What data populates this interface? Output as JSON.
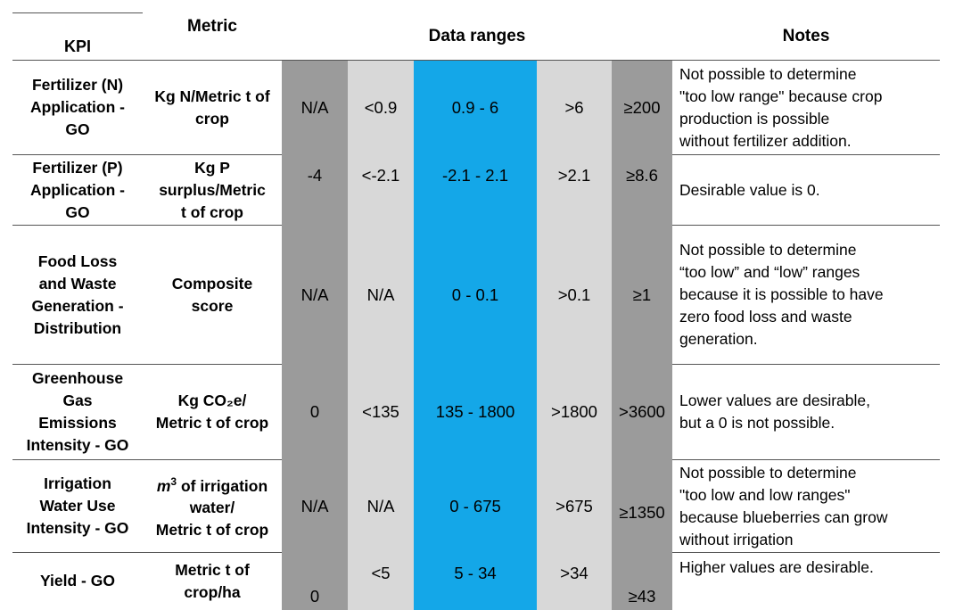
{
  "headers": {
    "kpi": "KPI",
    "metric": "Metric",
    "ranges": "Data ranges",
    "notes": "Notes"
  },
  "rows": [
    {
      "kpi": [
        "Fertilizer (N)",
        "Application -",
        "GO"
      ],
      "metric": [
        "Kg N/Metric t of",
        "crop"
      ],
      "ranges": [
        "N/A",
        "<0.9",
        "0.9 - 6",
        ">6",
        "≥200"
      ],
      "notes": [
        "Not possible to determine",
        "\"too low range\" because crop",
        "production is possible",
        "without fertilizer addition."
      ]
    },
    {
      "kpi": [
        "Fertilizer (P)",
        "Application -",
        "GO"
      ],
      "metric": [
        "Kg P",
        "surplus/Metric",
        "t of crop"
      ],
      "ranges": [
        "-4",
        "<-2.1",
        "-2.1 - 2.1",
        ">2.1",
        "≥8.6"
      ],
      "notes": [
        "Desirable value is 0."
      ]
    },
    {
      "kpi": [
        "Food Loss",
        "and Waste",
        "Generation -",
        "Distribution"
      ],
      "metric": [
        "Composite",
        "score"
      ],
      "ranges": [
        "N/A",
        "N/A",
        "0 - 0.1",
        ">0.1",
        "≥1"
      ],
      "notes": [
        "Not possible to determine",
        "“too low” and “low” ranges",
        "because it is possible to have",
        "zero food loss and waste",
        "generation."
      ]
    },
    {
      "kpi": [
        "Greenhouse",
        "Gas",
        "Emissions",
        "Intensity - GO"
      ],
      "metric": [
        "Kg CO₂e/",
        "Metric t of crop"
      ],
      "ranges": [
        "0",
        "<135",
        "135 - 1800",
        ">1800",
        ">3600"
      ],
      "notes": [
        "Lower values are desirable,",
        "but a 0 is not possible."
      ]
    },
    {
      "kpi": [
        "Irrigation",
        "Water Use",
        "Intensity - GO"
      ],
      "metric_prefix": "m",
      "metric_sup": "3",
      "metric": [
        " of irrigation",
        "water/",
        "Metric t of crop"
      ],
      "ranges": [
        "N/A",
        "N/A",
        "0 - 675",
        ">675",
        "≥1350"
      ],
      "notes": [
        "Not possible to determine",
        "\"too low and low ranges\"",
        "because blueberries can grow",
        "without irrigation"
      ]
    },
    {
      "kpi": [
        "Yield - GO"
      ],
      "metric": [
        "Metric t of",
        "crop/ha"
      ],
      "ranges": [
        "0",
        "<5",
        "5 - 34",
        ">34",
        "≥43"
      ],
      "notes": [
        "Higher values are desirable."
      ]
    }
  ]
}
